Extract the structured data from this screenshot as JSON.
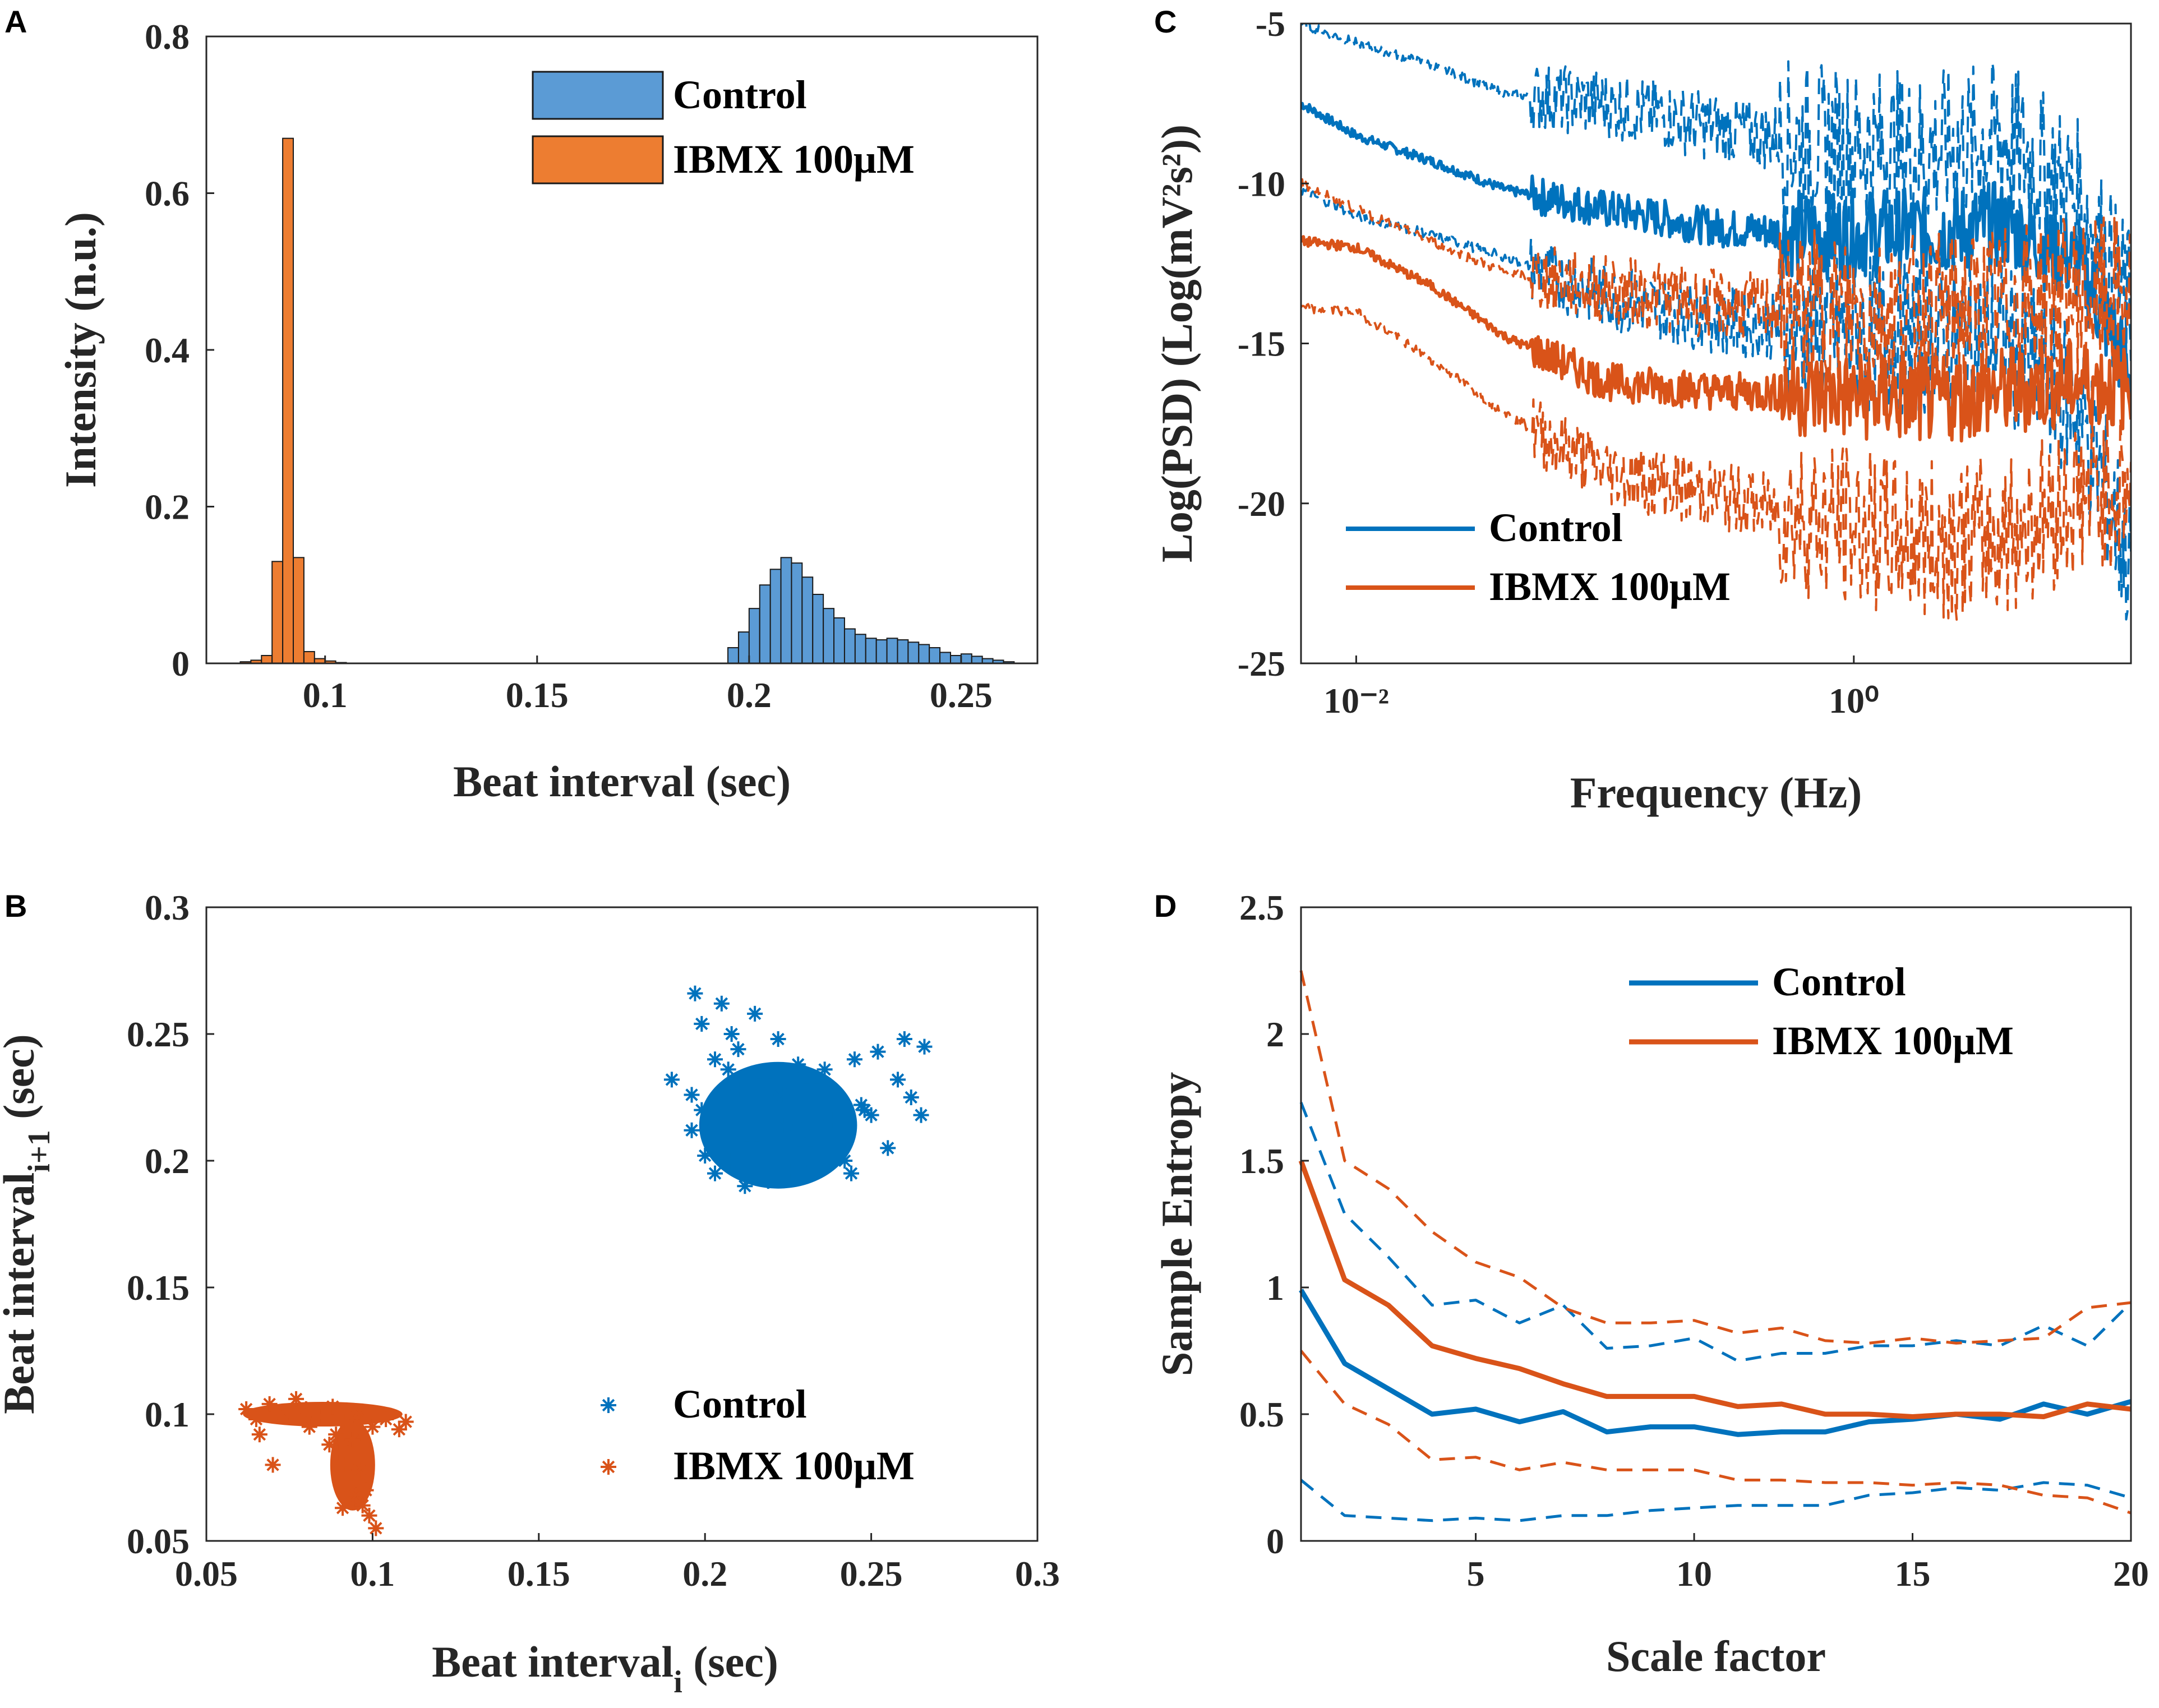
{
  "colors": {
    "control": "#0072BD",
    "ibmx": "#D95319",
    "control_hist": "#5B9BD5",
    "ibmx_hist": "#ED7D31",
    "axis": "#262626"
  },
  "chart_data": [
    {
      "panel": "A",
      "type": "bar",
      "xlabel": "Beat interval (sec)",
      "ylabel": "Intensity (n.u.)",
      "xlim": [
        0.072,
        0.268
      ],
      "ylim": [
        0,
        0.8
      ],
      "xticks": [
        "0.1",
        "0.15",
        "0.2",
        "0.25"
      ],
      "yticks": [
        "0",
        "0.2",
        "0.4",
        "0.6",
        "0.8"
      ],
      "bin_width": 0.0025,
      "legend": [
        "Control",
        "IBMX 100μM"
      ],
      "legend_position": "top-right",
      "series": [
        {
          "name": "Control",
          "bin_starts": [
            0.195,
            0.1975,
            0.2,
            0.2025,
            0.205,
            0.2075,
            0.21,
            0.2125,
            0.215,
            0.2175,
            0.22,
            0.2225,
            0.225,
            0.2275,
            0.23,
            0.2325,
            0.235,
            0.2375,
            0.24,
            0.2425,
            0.245,
            0.2475,
            0.25,
            0.2525,
            0.255,
            0.2575,
            0.26
          ],
          "values": [
            0.02,
            0.04,
            0.07,
            0.1,
            0.12,
            0.135,
            0.128,
            0.11,
            0.088,
            0.07,
            0.058,
            0.044,
            0.037,
            0.032,
            0.03,
            0.032,
            0.03,
            0.027,
            0.024,
            0.02,
            0.014,
            0.01,
            0.012,
            0.009,
            0.006,
            0.004,
            0.002
          ]
        },
        {
          "name": "IBMX 100μM",
          "bin_starts": [
            0.08,
            0.0825,
            0.085,
            0.0875,
            0.09,
            0.0925,
            0.095,
            0.0975,
            0.1,
            0.1025
          ],
          "values": [
            0.002,
            0.004,
            0.01,
            0.13,
            0.67,
            0.135,
            0.015,
            0.006,
            0.003,
            0.001
          ]
        }
      ]
    },
    {
      "panel": "B",
      "type": "scatter",
      "xlabel_main": "Beat interval",
      "xlabel_sub": "i",
      "xlabel_tail": " (sec)",
      "ylabel_main": "Beat interval",
      "ylabel_sub": "i+1",
      "ylabel_tail": " (sec)",
      "xlim": [
        0.05,
        0.3
      ],
      "ylim": [
        0.05,
        0.3
      ],
      "xticks": [
        "0.05",
        "0.1",
        "0.15",
        "0.2",
        "0.25",
        "0.3"
      ],
      "yticks": [
        "0.05",
        "0.1",
        "0.15",
        "0.2",
        "0.25",
        "0.3"
      ],
      "legend": [
        "Control",
        "IBMX 100μM"
      ],
      "legend_position": "bottom-right",
      "series": [
        {
          "name": "Control",
          "marker": "*",
          "x": [
            0.197,
            0.205,
            0.215,
            0.199,
            0.208,
            0.222,
            0.21,
            0.203,
            0.228,
            0.236,
            0.245,
            0.252,
            0.26,
            0.266,
            0.262,
            0.25,
            0.24,
            0.232,
            0.218,
            0.21,
            0.205,
            0.199,
            0.19,
            0.196,
            0.212,
            0.224,
            0.238,
            0.247,
            0.258,
            0.23,
            0.22,
            0.208,
            0.2,
            0.215,
            0.226,
            0.242,
            0.255,
            0.265,
            0.248,
            0.212,
            0.203,
            0.219,
            0.233,
            0.244,
            0.229,
            0.214,
            0.201,
            0.196,
            0.207,
            0.223
          ],
          "y": [
            0.266,
            0.262,
            0.258,
            0.254,
            0.25,
            0.248,
            0.244,
            0.24,
            0.238,
            0.236,
            0.24,
            0.243,
            0.248,
            0.245,
            0.225,
            0.218,
            0.224,
            0.23,
            0.232,
            0.228,
            0.224,
            0.22,
            0.232,
            0.212,
            0.21,
            0.214,
            0.216,
            0.222,
            0.232,
            0.206,
            0.205,
            0.2,
            0.202,
            0.196,
            0.196,
            0.2,
            0.205,
            0.218,
            0.22,
            0.19,
            0.195,
            0.192,
            0.198,
            0.195,
            0.212,
            0.208,
            0.215,
            0.226,
            0.236,
            0.226
          ]
        },
        {
          "name": "IBMX 100μM",
          "marker": "*",
          "x": [
            0.062,
            0.065,
            0.069,
            0.073,
            0.077,
            0.08,
            0.084,
            0.088,
            0.092,
            0.096,
            0.1,
            0.104,
            0.108,
            0.11,
            0.094,
            0.09,
            0.092,
            0.096,
            0.093,
            0.095,
            0.097,
            0.099,
            0.091,
            0.07,
            0.066,
            0.081,
            0.087,
            0.089,
            0.098,
            0.101
          ],
          "y": [
            0.102,
            0.098,
            0.104,
            0.1,
            0.106,
            0.102,
            0.099,
            0.103,
            0.097,
            0.101,
            0.095,
            0.098,
            0.094,
            0.097,
            0.09,
            0.085,
            0.08,
            0.078,
            0.072,
            0.068,
            0.064,
            0.06,
            0.063,
            0.08,
            0.092,
            0.095,
            0.088,
            0.092,
            0.07,
            0.055
          ]
        }
      ]
    },
    {
      "panel": "C",
      "type": "line",
      "xscale": "log",
      "xlabel": "Frequency (Hz)",
      "ylabel": "Log(PSD) (Log(mV²s²))",
      "xlim": [
        0.006,
        13
      ],
      "ylim": [
        -25,
        -5
      ],
      "xticks": [
        "10⁻²",
        "10⁰"
      ],
      "yticks": [
        "-5",
        "-10",
        "-15",
        "-20",
        "-25"
      ],
      "legend": [
        "Control",
        "IBMX 100μM"
      ],
      "legend_position": "bottom-left",
      "x": [
        0.006,
        0.01,
        0.02,
        0.04,
        0.1,
        0.3,
        0.8,
        2,
        4,
        8,
        13
      ],
      "series": [
        {
          "name": "Control",
          "style": "solid",
          "values": [
            -7.5,
            -8.5,
            -9.3,
            -10.2,
            -10.8,
            -11.4,
            -11.6,
            -11.5,
            -11.3,
            -12.5,
            -16
          ]
        },
        {
          "name": "Control +SD",
          "style": "dashed",
          "values": [
            -5.0,
            -5.6,
            -6.3,
            -7.2,
            -7.5,
            -8.3,
            -8.8,
            -9.0,
            -8.6,
            -10.5,
            -14
          ]
        },
        {
          "name": "Control -SD",
          "style": "dashed",
          "values": [
            -10.2,
            -11.0,
            -11.6,
            -12.3,
            -13.5,
            -14.3,
            -14.6,
            -14.8,
            -14.9,
            -17.0,
            -22
          ]
        },
        {
          "name": "IBMX 100μM",
          "style": "solid",
          "values": [
            -11.8,
            -12.0,
            -13.2,
            -14.8,
            -16.2,
            -16.5,
            -16.6,
            -16.8,
            -16.5,
            -16.2,
            -16.4
          ]
        },
        {
          "name": "IBMX +SD",
          "style": "dashed",
          "values": [
            -10.0,
            -10.8,
            -11.8,
            -12.8,
            -13.3,
            -13.8,
            -14.0,
            -14.1,
            -13.8,
            -13.5,
            -13.6
          ]
        },
        {
          "name": "IBMX -SD",
          "style": "dashed",
          "values": [
            -13.9,
            -14.0,
            -15.5,
            -17.2,
            -19.0,
            -19.8,
            -20.6,
            -21.2,
            -21.0,
            -19.8,
            -19.4
          ]
        }
      ]
    },
    {
      "panel": "D",
      "type": "line",
      "xlabel": "Scale factor",
      "ylabel": "Sample Entropy",
      "xlim": [
        1,
        20
      ],
      "ylim": [
        0,
        2.5
      ],
      "xticks": [
        "5",
        "10",
        "15",
        "20"
      ],
      "yticks": [
        "0",
        "0.5",
        "1",
        "1.5",
        "2",
        "2.5"
      ],
      "legend": [
        "Control",
        "IBMX 100μM"
      ],
      "legend_position": "top-right",
      "x": [
        1,
        2,
        3,
        4,
        5,
        6,
        7,
        8,
        9,
        10,
        11,
        12,
        13,
        14,
        15,
        16,
        17,
        18,
        19,
        20
      ],
      "series": [
        {
          "name": "Control",
          "style": "solid",
          "values": [
            0.99,
            0.7,
            0.6,
            0.5,
            0.52,
            0.47,
            0.51,
            0.43,
            0.45,
            0.45,
            0.42,
            0.43,
            0.43,
            0.47,
            0.48,
            0.5,
            0.48,
            0.54,
            0.5,
            0.55
          ]
        },
        {
          "name": "Control +SD",
          "style": "dashed",
          "values": [
            1.73,
            1.29,
            1.12,
            0.93,
            0.95,
            0.86,
            0.93,
            0.76,
            0.77,
            0.8,
            0.71,
            0.74,
            0.74,
            0.77,
            0.77,
            0.79,
            0.77,
            0.85,
            0.77,
            0.94
          ]
        },
        {
          "name": "Control -SD",
          "style": "dashed",
          "values": [
            0.24,
            0.1,
            0.09,
            0.08,
            0.09,
            0.08,
            0.1,
            0.1,
            0.12,
            0.13,
            0.14,
            0.14,
            0.14,
            0.18,
            0.19,
            0.21,
            0.2,
            0.23,
            0.22,
            0.17
          ]
        },
        {
          "name": "IBMX 100μM",
          "style": "solid",
          "values": [
            1.5,
            1.03,
            0.93,
            0.77,
            0.72,
            0.68,
            0.62,
            0.57,
            0.57,
            0.57,
            0.53,
            0.54,
            0.5,
            0.5,
            0.49,
            0.5,
            0.5,
            0.49,
            0.54,
            0.52
          ]
        },
        {
          "name": "IBMX +SD",
          "style": "dashed",
          "values": [
            2.25,
            1.5,
            1.39,
            1.22,
            1.1,
            1.04,
            0.92,
            0.86,
            0.86,
            0.87,
            0.82,
            0.84,
            0.79,
            0.78,
            0.8,
            0.78,
            0.79,
            0.8,
            0.92,
            0.94
          ]
        },
        {
          "name": "IBMX -SD",
          "style": "dashed",
          "values": [
            0.75,
            0.54,
            0.46,
            0.32,
            0.33,
            0.28,
            0.31,
            0.28,
            0.28,
            0.28,
            0.24,
            0.24,
            0.23,
            0.23,
            0.22,
            0.23,
            0.22,
            0.18,
            0.17,
            0.11
          ]
        }
      ]
    }
  ]
}
